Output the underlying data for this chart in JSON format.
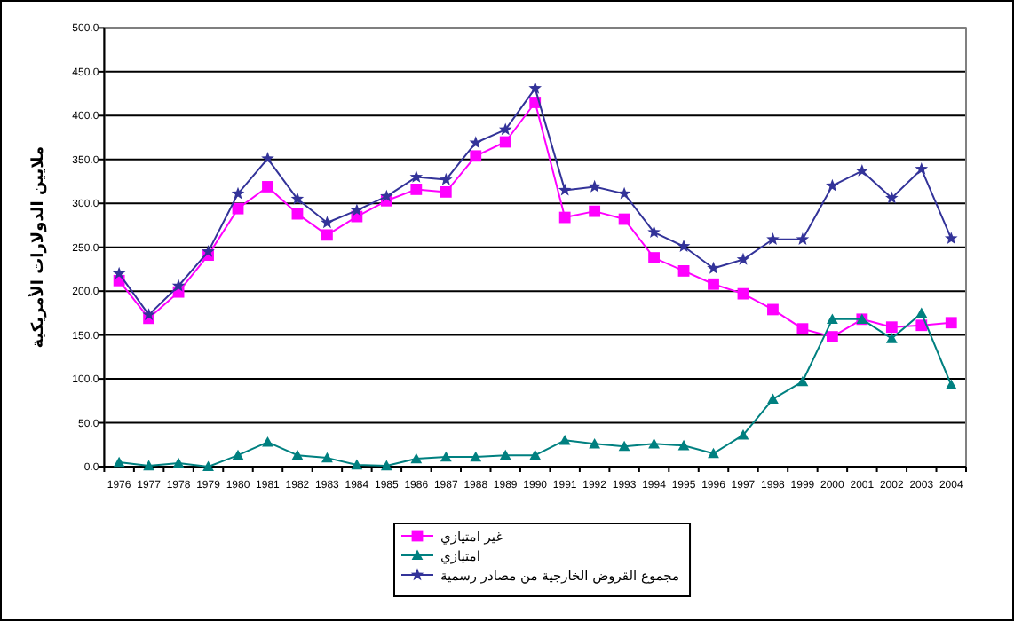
{
  "chart_data": {
    "type": "line",
    "ylabel": "ملايين الدولارات الأمريكية",
    "categories": [
      "1976",
      "1977",
      "1978",
      "1979",
      "1980",
      "1981",
      "1982",
      "1983",
      "1984",
      "1985",
      "1986",
      "1987",
      "1988",
      "1989",
      "1990",
      "1991",
      "1992",
      "1993",
      "1994",
      "1995",
      "1996",
      "1997",
      "1998",
      "1999",
      "2000",
      "2001",
      "2002",
      "2003",
      "2004"
    ],
    "series": [
      {
        "name": "غير امتيازي",
        "color": "#ff00ff",
        "marker": "square",
        "values": [
          212,
          169,
          199,
          241,
          294,
          319,
          288,
          264,
          285,
          303,
          316,
          313,
          354,
          370,
          415,
          284,
          291,
          282,
          238,
          223,
          208,
          197,
          179,
          157,
          148,
          168,
          159,
          161,
          164
        ]
      },
      {
        "name": "امتيازي",
        "color": "#008080",
        "marker": "triangle",
        "values": [
          5,
          1,
          4,
          0,
          13,
          28,
          13,
          10,
          2,
          1,
          9,
          11,
          11,
          13,
          13,
          30,
          26,
          23,
          26,
          24,
          15,
          36,
          77,
          97,
          168,
          168,
          146,
          175,
          93
        ]
      },
      {
        "name": "مجموع القروض الخارجية من مصادر رسمية",
        "color": "#333399",
        "marker": "star",
        "values": [
          220,
          173,
          206,
          245,
          311,
          351,
          305,
          278,
          292,
          308,
          330,
          327,
          369,
          384,
          431,
          315,
          319,
          311,
          267,
          251,
          226,
          236,
          259,
          259,
          320,
          337,
          306,
          339,
          260
        ]
      }
    ],
    "ylim": [
      0,
      500
    ],
    "yticks": [
      {
        "value": 0,
        "label": "0.0"
      },
      {
        "value": 50,
        "label": "50.0"
      },
      {
        "value": 100,
        "label": "100.0"
      },
      {
        "value": 150,
        "label": "150.0"
      },
      {
        "value": 200,
        "label": "200.0"
      },
      {
        "value": 250,
        "label": "250.0"
      },
      {
        "value": 300,
        "label": "300.0"
      },
      {
        "value": 350,
        "label": "350.0"
      },
      {
        "value": 400,
        "label": "400.0"
      },
      {
        "value": 450,
        "label": "450.0"
      },
      {
        "value": 500,
        "label": "500.0"
      }
    ],
    "grid": "y",
    "line_style": "solid",
    "legend": "bottom"
  }
}
